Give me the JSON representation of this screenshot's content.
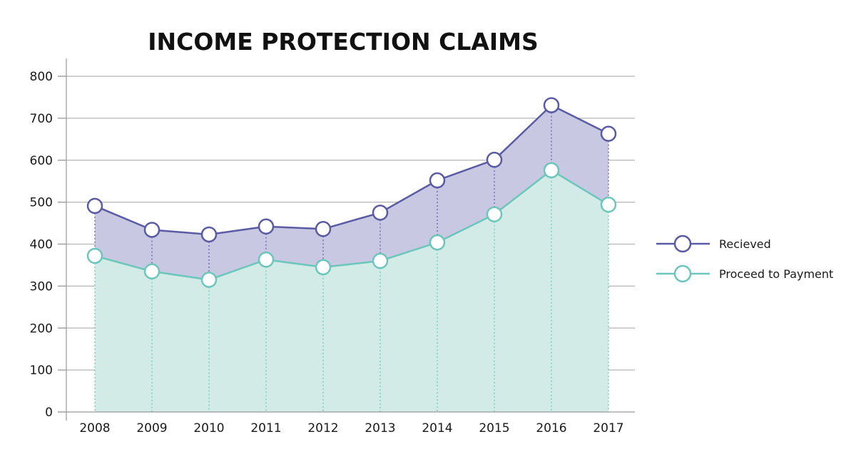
{
  "chart_data": {
    "type": "area",
    "title": "INCOME PROTECTION CLAIMS",
    "xlabel": "",
    "ylabel": "",
    "x": [
      "2008",
      "2009",
      "2010",
      "2011",
      "2012",
      "2013",
      "2014",
      "2015",
      "2016",
      "2017"
    ],
    "ylim": [
      0,
      800
    ],
    "yticks": [
      "0",
      "100",
      "200",
      "300",
      "400",
      "500",
      "600",
      "700",
      "800"
    ],
    "grid": true,
    "legend_position": "right",
    "series": [
      {
        "name": "Recieved",
        "color": "#5a5ba3",
        "fill": "#c8c8e3",
        "values": [
          491,
          434,
          423,
          442,
          436,
          475,
          552,
          601,
          731,
          663
        ]
      },
      {
        "name": "Proceed to Payment",
        "color": "#6cc6bb",
        "fill": "#d2ebe6",
        "values": [
          372,
          335,
          315,
          363,
          345,
          360,
          404,
          471,
          576,
          494
        ]
      }
    ]
  }
}
